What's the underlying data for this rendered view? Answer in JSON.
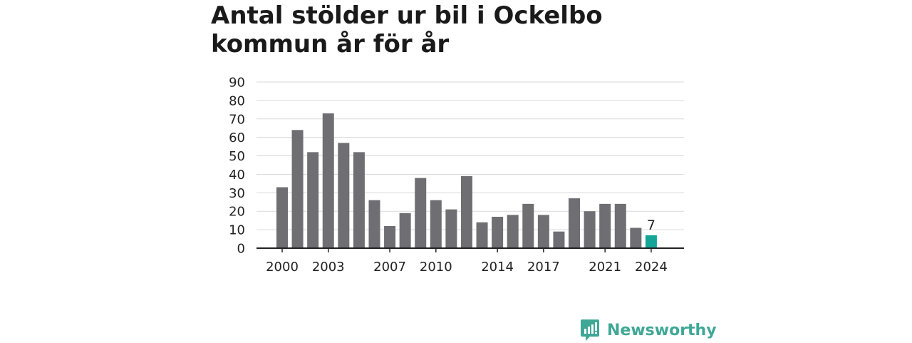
{
  "title": "Antal stölder ur bil i Ockelbo kommun år för år",
  "brand": {
    "name": "Newsworthy",
    "icon": "newsworthy-logo-icon",
    "color": "#3fa796"
  },
  "colors": {
    "bar": "#6e6e73",
    "highlight": "#14a598",
    "grid": "#d9d9d9",
    "axis": "#222222"
  },
  "chart_data": {
    "type": "bar",
    "title": "Antal stölder ur bil i Ockelbo kommun år för år",
    "xlabel": "",
    "ylabel": "",
    "categories": [
      "2000",
      "2001",
      "2002",
      "2003",
      "2004",
      "2005",
      "2006",
      "2007",
      "2008",
      "2009",
      "2010",
      "2011",
      "2012",
      "2013",
      "2014",
      "2015",
      "2016",
      "2017",
      "2018",
      "2019",
      "2020",
      "2021",
      "2022",
      "2023",
      "2024"
    ],
    "values": [
      33,
      64,
      52,
      73,
      57,
      52,
      26,
      12,
      19,
      38,
      26,
      21,
      39,
      14,
      17,
      18,
      24,
      18,
      9,
      27,
      20,
      24,
      24,
      11,
      7
    ],
    "x_tick_labels": [
      "2000",
      "2003",
      "2007",
      "2010",
      "2014",
      "2017",
      "2021",
      "2024"
    ],
    "y_ticks": [
      0,
      10,
      20,
      30,
      40,
      50,
      60,
      70,
      80,
      90
    ],
    "ylim": [
      0,
      90
    ],
    "grid": true,
    "highlight": {
      "category": "2024",
      "label": "7"
    }
  }
}
